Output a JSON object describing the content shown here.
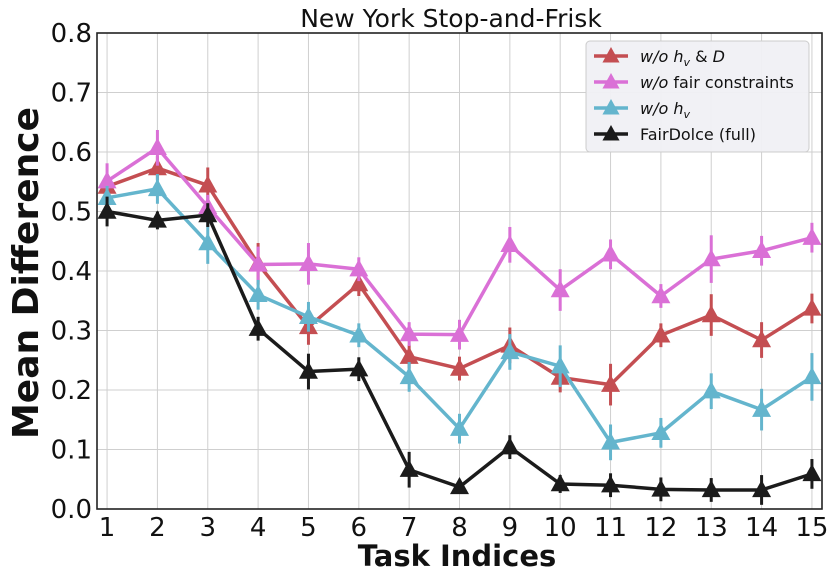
{
  "chart_data": {
    "type": "line",
    "title": "New York Stop-and-Frisk",
    "xlabel": "Task Indices",
    "ylabel": "Mean Difference",
    "x": [
      1,
      2,
      3,
      4,
      5,
      6,
      7,
      8,
      9,
      10,
      11,
      12,
      13,
      14,
      15
    ],
    "xlim": [
      0.8,
      15.2
    ],
    "ylim": [
      0.0,
      0.8
    ],
    "yticks": [
      "0.0",
      "0.1",
      "0.2",
      "0.3",
      "0.4",
      "0.5",
      "0.6",
      "0.7",
      "0.8"
    ],
    "grid": true,
    "legend_position": "top-right",
    "marker": "triangle-up",
    "series": [
      {
        "name": "w/o h_v & D",
        "legend_parts": [
          [
            "w/o h",
            "i"
          ],
          [
            "v",
            "sub-i"
          ],
          [
            " & ",
            "n"
          ],
          [
            "D",
            "i"
          ]
        ],
        "color": "#c44e52",
        "values": [
          0.542,
          0.573,
          0.544,
          0.412,
          0.306,
          0.378,
          0.256,
          0.236,
          0.275,
          0.221,
          0.209,
          0.292,
          0.326,
          0.284,
          0.337
        ],
        "errors": [
          0.015,
          0.02,
          0.03,
          0.035,
          0.03,
          0.02,
          0.02,
          0.02,
          0.03,
          0.025,
          0.035,
          0.02,
          0.035,
          0.03,
          0.025
        ]
      },
      {
        "name": "w/o fair constraints",
        "legend_parts": [
          [
            "w/o",
            "i"
          ],
          [
            " fair constraints",
            "n"
          ]
        ],
        "color": "#da70d6",
        "values": [
          0.551,
          0.607,
          0.508,
          0.411,
          0.412,
          0.403,
          0.294,
          0.293,
          0.444,
          0.368,
          0.428,
          0.358,
          0.42,
          0.434,
          0.456
        ],
        "errors": [
          0.03,
          0.03,
          0.02,
          0.03,
          0.035,
          0.02,
          0.02,
          0.025,
          0.03,
          0.035,
          0.025,
          0.02,
          0.04,
          0.025,
          0.025
        ]
      },
      {
        "name": "w/o h_v",
        "legend_parts": [
          [
            "w/o h",
            "i"
          ],
          [
            "v",
            "sub-i"
          ]
        ],
        "color": "#64b5cd",
        "values": [
          0.523,
          0.538,
          0.447,
          0.36,
          0.323,
          0.292,
          0.222,
          0.135,
          0.264,
          0.24,
          0.112,
          0.128,
          0.198,
          0.167,
          0.222
        ],
        "errors": [
          0.02,
          0.025,
          0.035,
          0.025,
          0.025,
          0.02,
          0.025,
          0.025,
          0.03,
          0.035,
          0.03,
          0.025,
          0.03,
          0.035,
          0.04
        ]
      },
      {
        "name": "FairDolce (full)",
        "legend_parts": [
          [
            "FairDolce (full)",
            "n"
          ]
        ],
        "color": "#1b1b1b",
        "values": [
          0.5,
          0.485,
          0.494,
          0.303,
          0.231,
          0.235,
          0.066,
          0.037,
          0.104,
          0.042,
          0.04,
          0.033,
          0.032,
          0.032,
          0.059
        ],
        "errors": [
          0.025,
          0.015,
          0.02,
          0.02,
          0.03,
          0.02,
          0.03,
          0.01,
          0.02,
          0.015,
          0.02,
          0.02,
          0.02,
          0.025,
          0.025
        ]
      }
    ]
  }
}
